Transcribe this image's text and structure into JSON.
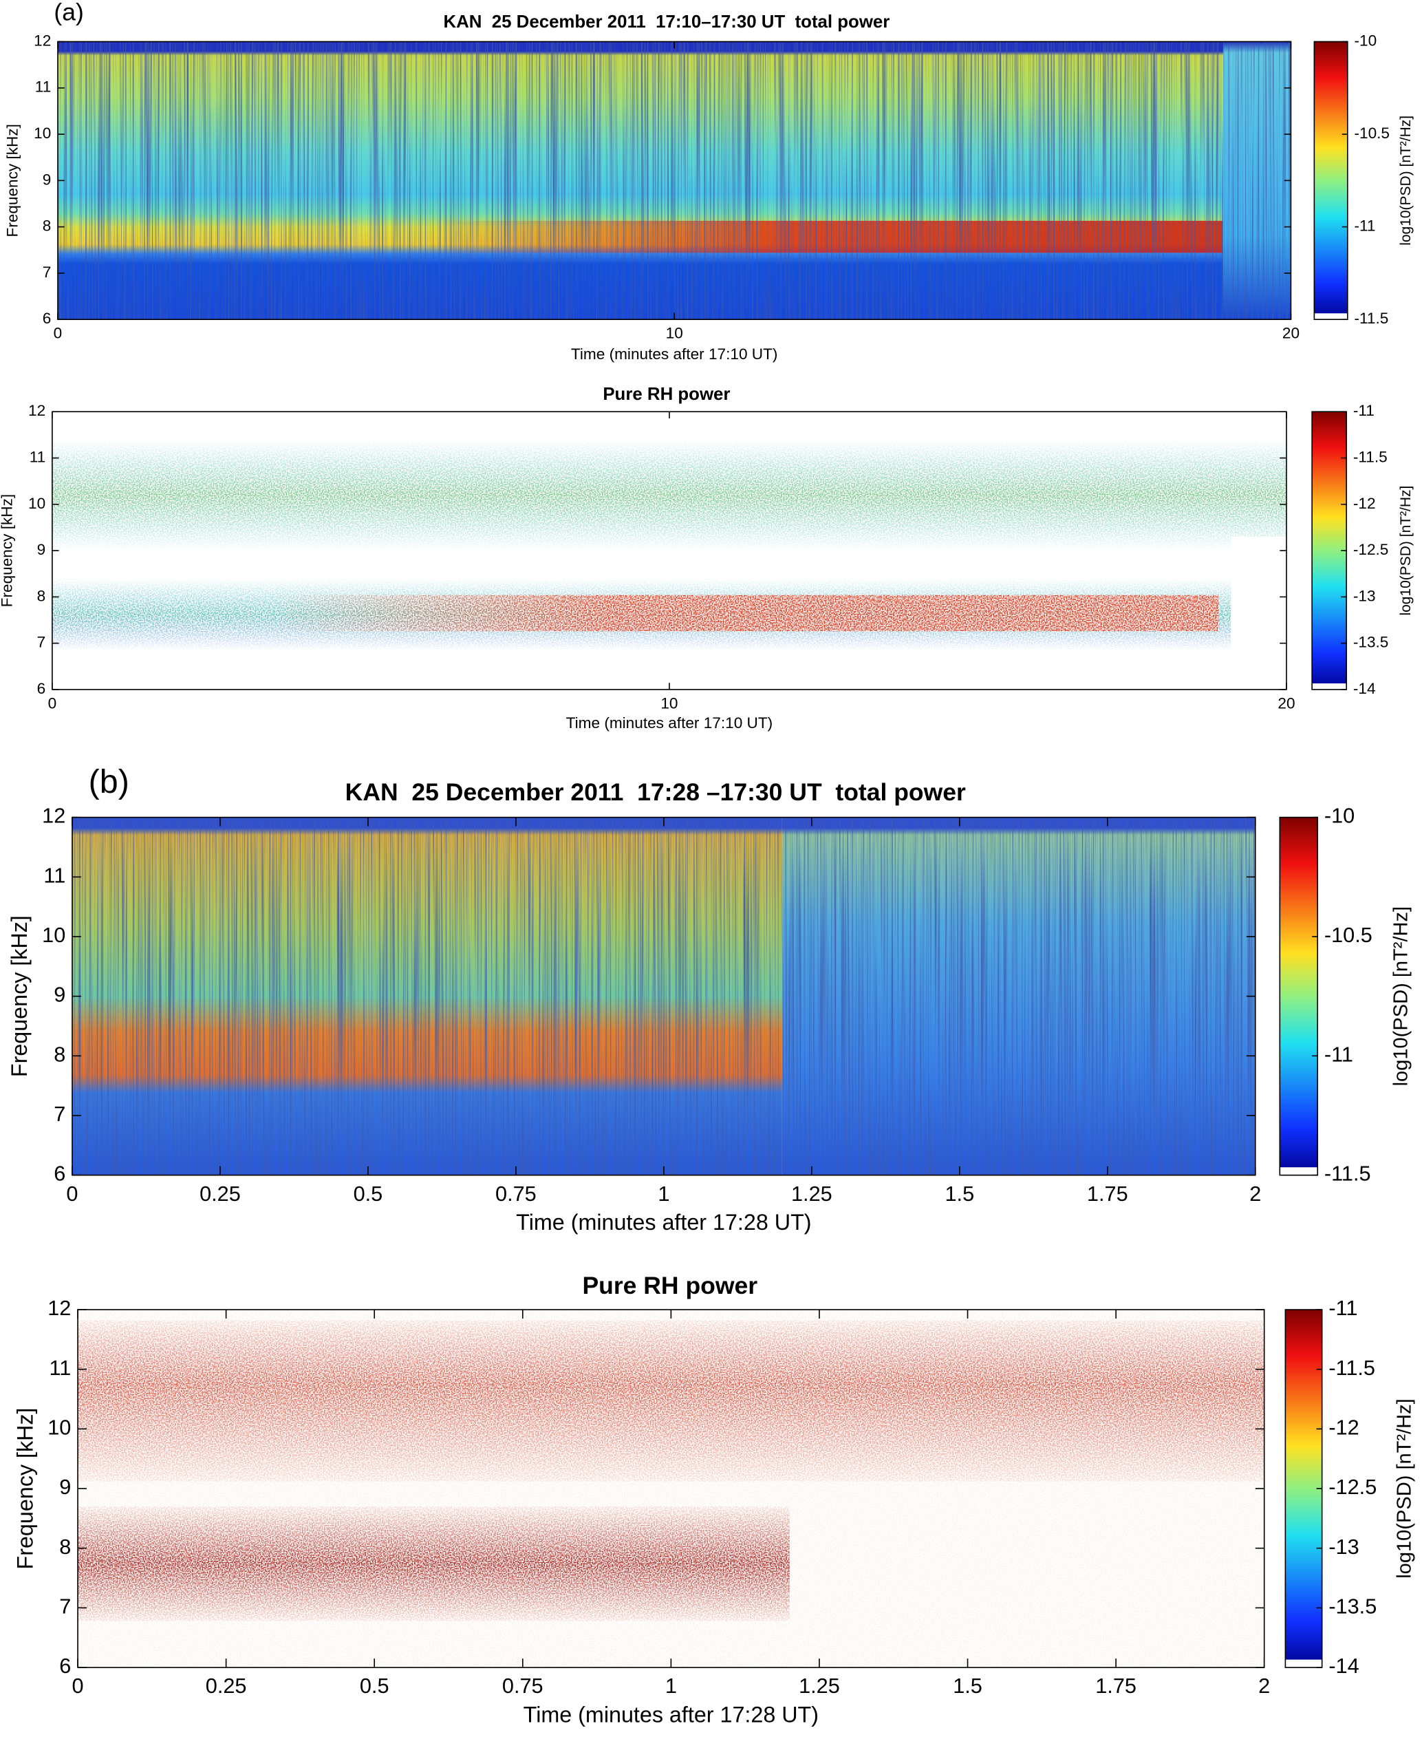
{
  "chart_data": [
    {
      "type": "spectrogram",
      "panel_label": "(a)",
      "title": "KAN  25 December 2011  17:10–17:30 UT  total power",
      "xlabel": "Time (minutes after 17:10 UT)",
      "ylabel": "Frequency [kHz]",
      "xlim": [
        0,
        20
      ],
      "xticks": [
        0,
        10,
        20
      ],
      "ylim": [
        6,
        12
      ],
      "yticks": [
        6,
        7,
        8,
        9,
        10,
        11,
        12
      ],
      "colorbar": {
        "label": "log10(PSD) [nT²/Hz]",
        "lim": [
          -11.5,
          -10
        ],
        "ticks": [
          -10,
          -10.5,
          -11,
          -11.5
        ]
      }
    },
    {
      "type": "spectrogram",
      "title": "Pure RH power",
      "xlabel": "Time (minutes after 17:10 UT)",
      "ylabel": "Frequency [kHz]",
      "xlim": [
        0,
        20
      ],
      "xticks": [
        0,
        10,
        20
      ],
      "ylim": [
        6,
        12
      ],
      "yticks": [
        6,
        7,
        8,
        9,
        10,
        11,
        12
      ],
      "colorbar": {
        "label": "log10(PSD) [nT²/Hz]",
        "lim": [
          -14,
          -11
        ],
        "ticks": [
          -11,
          -11.5,
          -12,
          -12.5,
          -13,
          -13.5,
          -14
        ]
      }
    },
    {
      "type": "spectrogram",
      "panel_label": "(b)",
      "title": "KAN  25 December 2011  17:28 –17:30 UT  total power",
      "xlabel": "Time (minutes after 17:28 UT)",
      "ylabel": "Frequency [kHz]",
      "xlim": [
        0,
        2
      ],
      "xticks": [
        0,
        0.25,
        0.5,
        0.75,
        1,
        1.25,
        1.5,
        1.75,
        2
      ],
      "ylim": [
        6,
        12
      ],
      "yticks": [
        6,
        7,
        8,
        9,
        10,
        11,
        12
      ],
      "colorbar": {
        "label": "log10(PSD) [nT²/Hz]",
        "lim": [
          -11.5,
          -10
        ],
        "ticks": [
          -10,
          -10.5,
          -11,
          -11.5
        ]
      }
    },
    {
      "type": "spectrogram",
      "title": "Pure RH power",
      "xlabel": "Time (minutes after 17:28 UT)",
      "ylabel": "Frequency [kHz]",
      "xlim": [
        0,
        2
      ],
      "xticks": [
        0,
        0.25,
        0.5,
        0.75,
        1,
        1.25,
        1.5,
        1.75,
        2
      ],
      "ylim": [
        6,
        12
      ],
      "yticks": [
        6,
        7,
        8,
        9,
        10,
        11,
        12
      ],
      "colorbar": {
        "label": "log10(PSD) [nT²/Hz]",
        "lim": [
          -14,
          -11
        ],
        "ticks": [
          -11,
          -11.5,
          -12,
          -12.5,
          -13,
          -13.5,
          -14
        ]
      }
    }
  ]
}
